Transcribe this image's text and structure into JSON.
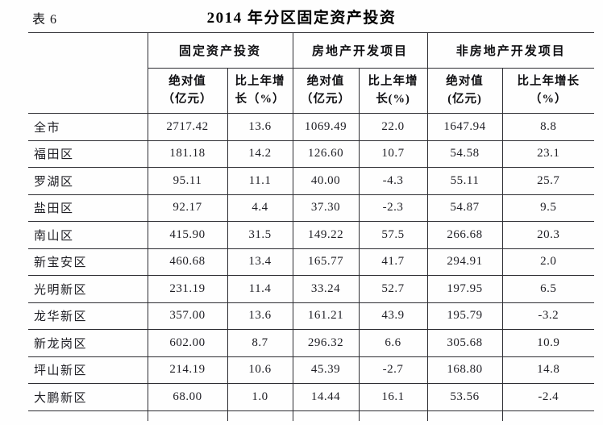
{
  "table_number": "表 6",
  "title": "2014 年分区固定资产投资",
  "columns": {
    "groups": [
      "固定资产投资",
      "房地产开发项目",
      "非房地产开发项目"
    ],
    "sub": [
      {
        "line1": "绝对值",
        "line2": "（亿元）"
      },
      {
        "line1": "比上年增",
        "line2": "长（%）"
      },
      {
        "line1": "绝对值",
        "line2": "（亿元）"
      },
      {
        "line1": "比上年增",
        "line2": "长(%)"
      },
      {
        "line1": "绝对值",
        "line2": "(亿元)"
      },
      {
        "line1": "比上年增长",
        "line2": "（%）"
      }
    ]
  },
  "rows": [
    {
      "name": "全市",
      "values": [
        "2717.42",
        "13.6",
        "1069.49",
        "22.0",
        "1647.94",
        "8.8"
      ]
    },
    {
      "name": "福田区",
      "values": [
        "181.18",
        "14.2",
        "126.60",
        "10.7",
        "54.58",
        "23.1"
      ]
    },
    {
      "name": "罗湖区",
      "values": [
        "95.11",
        "11.1",
        "40.00",
        "-4.3",
        "55.11",
        "25.7"
      ]
    },
    {
      "name": "盐田区",
      "values": [
        "92.17",
        "4.4",
        "37.30",
        "-2.3",
        "54.87",
        "9.5"
      ]
    },
    {
      "name": "南山区",
      "values": [
        "415.90",
        "31.5",
        "149.22",
        "57.5",
        "266.68",
        "20.3"
      ]
    },
    {
      "name": "新宝安区",
      "values": [
        "460.68",
        "13.4",
        "165.77",
        "41.7",
        "294.91",
        "2.0"
      ]
    },
    {
      "name": "光明新区",
      "values": [
        "231.19",
        "11.4",
        "33.24",
        "52.7",
        "197.95",
        "6.5"
      ]
    },
    {
      "name": "龙华新区",
      "values": [
        "357.00",
        "13.6",
        "161.21",
        "43.9",
        "195.79",
        "-3.2"
      ]
    },
    {
      "name": "新龙岗区",
      "values": [
        "602.00",
        "8.7",
        "296.32",
        "6.6",
        "305.68",
        "10.9"
      ]
    },
    {
      "name": "坪山新区",
      "values": [
        "214.19",
        "10.6",
        "45.39",
        "-2.7",
        "168.80",
        "14.8"
      ]
    },
    {
      "name": "大鹏新区",
      "values": [
        "68.00",
        "1.0",
        "14.44",
        "16.1",
        "53.56",
        "-2.4"
      ]
    }
  ],
  "colors": {
    "text": "#1e1e24",
    "line": "#2e2e33",
    "background": "#fefefe"
  }
}
